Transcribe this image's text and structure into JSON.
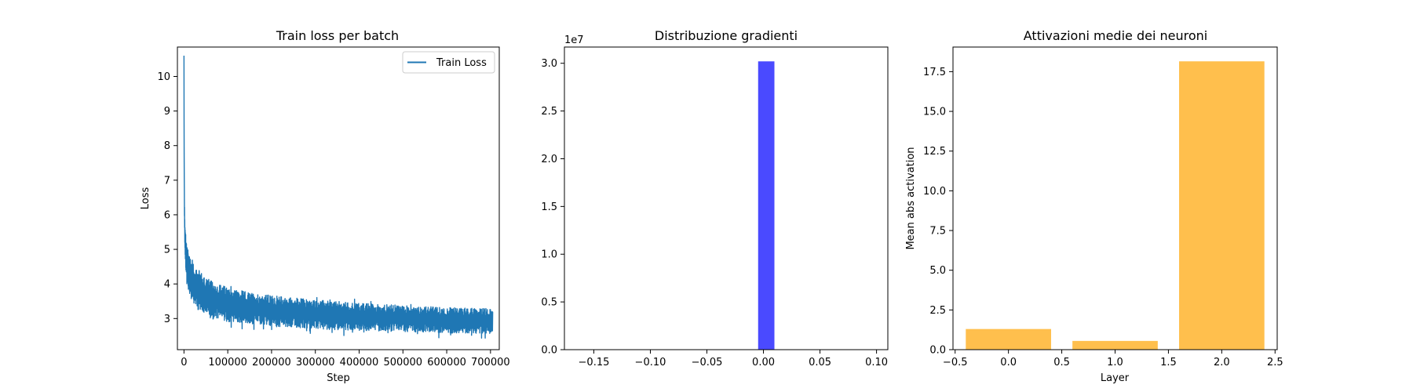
{
  "chart_data": [
    {
      "type": "line",
      "title": "Train loss per batch",
      "xlabel": "Step",
      "ylabel": "Loss",
      "xlim": [
        -15000,
        720000
      ],
      "ylim": [
        2.1,
        10.85
      ],
      "xticks": [
        0,
        100000,
        200000,
        300000,
        400000,
        500000,
        600000,
        700000
      ],
      "xtick_labels": [
        "0",
        "100000",
        "200000",
        "300000",
        "400000",
        "500000",
        "600000",
        "700000"
      ],
      "yticks": [
        3,
        4,
        5,
        6,
        7,
        8,
        9,
        10
      ],
      "ytick_labels": [
        "3",
        "4",
        "5",
        "6",
        "7",
        "8",
        "9",
        "10"
      ],
      "legend": {
        "position": "top-right",
        "entries": [
          "Train Loss"
        ]
      },
      "series": [
        {
          "name": "Train Loss",
          "color": "#1f77b4",
          "x": [
            0,
            300,
            1000,
            2000,
            4000,
            8000,
            15000,
            30000,
            60000,
            100000,
            150000,
            200000,
            300000,
            400000,
            500000,
            600000,
            705000
          ],
          "y": [
            10.6,
            8.0,
            6.2,
            5.5,
            4.9,
            4.5,
            4.2,
            3.85,
            3.55,
            3.4,
            3.3,
            3.22,
            3.12,
            3.05,
            3.0,
            2.95,
            2.93
          ],
          "noise_halfwidth": [
            0,
            0,
            0.2,
            0.4,
            0.5,
            0.55,
            0.6,
            0.6,
            0.55,
            0.5,
            0.45,
            0.45,
            0.42,
            0.4,
            0.38,
            0.37,
            0.36
          ]
        }
      ],
      "grid": false
    },
    {
      "type": "histogram",
      "title": "Distribuzione gradienti",
      "xlabel": "",
      "ylabel": "",
      "offset_label": "1e7",
      "xlim": [
        -0.176,
        0.11
      ],
      "ylim": [
        0,
        3.17
      ],
      "xticks": [
        -0.15,
        -0.1,
        -0.05,
        0.0,
        0.05,
        0.1
      ],
      "xtick_labels": [
        "−0.15",
        "−0.10",
        "−0.05",
        "0.00",
        "0.05",
        "0.10"
      ],
      "yticks": [
        0.0,
        0.5,
        1.0,
        1.5,
        2.0,
        2.5,
        3.0
      ],
      "ytick_labels": [
        "0.0",
        "0.5",
        "1.0",
        "1.5",
        "2.0",
        "2.5",
        "3.0"
      ],
      "color": "#4a4aff",
      "bars": [
        {
          "x0": -0.0047,
          "x1": 0.0097,
          "value": 3.02
        }
      ],
      "grid": false
    },
    {
      "type": "bar",
      "title": "Attivazioni medie dei neuroni",
      "xlabel": "Layer",
      "ylabel": "Mean abs activation",
      "xlim": [
        -0.52,
        2.52
      ],
      "ylim": [
        0,
        19.05
      ],
      "xticks": [
        -0.5,
        0.0,
        0.5,
        1.0,
        1.5,
        2.0,
        2.5
      ],
      "xtick_labels": [
        "−0.5",
        "0.0",
        "0.5",
        "1.0",
        "1.5",
        "2.0",
        "2.5"
      ],
      "yticks": [
        0.0,
        2.5,
        5.0,
        7.5,
        10.0,
        12.5,
        15.0,
        17.5
      ],
      "ytick_labels": [
        "0.0",
        "2.5",
        "5.0",
        "7.5",
        "10.0",
        "12.5",
        "15.0",
        "17.5"
      ],
      "color": "#ffbf4d",
      "categories": [
        0,
        1,
        2
      ],
      "values": [
        1.3,
        0.55,
        18.15
      ],
      "bar_width": 0.8,
      "grid": false
    }
  ]
}
